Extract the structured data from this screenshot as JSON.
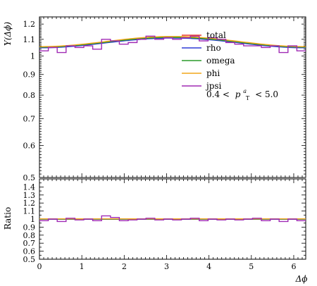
{
  "chart_data": [
    {
      "type": "line",
      "panel": "main",
      "ylabel": "Y(Δϕ)",
      "xlim": [
        0,
        6.283
      ],
      "ylim": [
        0.5,
        1.25
      ],
      "yscale": "log",
      "yticks": [
        "0.5",
        "0.6",
        "0.7",
        "0.8",
        "0.9",
        "1",
        "1.1",
        "1.2"
      ],
      "ytick_values": [
        0.5,
        0.6,
        0.7,
        0.8,
        0.9,
        1.0,
        1.1,
        1.2
      ],
      "legend_placement": "top-right",
      "annotation": "0.4 < p_T^a < 5.0",
      "annotation_parts": {
        "lhs": "0.4 <",
        "p": "p",
        "sup": "a",
        "sub": "T",
        "rhs": "< 5.0"
      },
      "bins": 30,
      "series": [
        {
          "name": "total",
          "color": "#e8382d",
          "style": "smooth",
          "y_min": 1.05,
          "y_max": 1.115
        },
        {
          "name": "rho",
          "color": "#2e3bd6",
          "style": "smooth",
          "y_min": 1.048,
          "y_max": 1.108
        },
        {
          "name": "omega",
          "color": "#2a9a2a",
          "style": "smooth",
          "y_min": 1.052,
          "y_max": 1.112
        },
        {
          "name": "phi",
          "color": "#f2a51a",
          "style": "smooth",
          "y_min": 1.055,
          "y_max": 1.118
        },
        {
          "name": "jpsi",
          "color": "#a02ab4",
          "style": "step",
          "values": [
            1.03,
            1.05,
            1.02,
            1.06,
            1.05,
            1.06,
            1.04,
            1.1,
            1.09,
            1.07,
            1.08,
            1.1,
            1.12,
            1.1,
            1.11,
            1.1,
            1.11,
            1.12,
            1.09,
            1.11,
            1.1,
            1.08,
            1.07,
            1.06,
            1.06,
            1.05,
            1.06,
            1.02,
            1.06,
            1.03
          ]
        }
      ]
    },
    {
      "type": "line",
      "panel": "ratio",
      "xlabel": "Δϕ",
      "ylabel": "Ratio",
      "xlim": [
        0,
        6.283
      ],
      "ylim": [
        0.5,
        1.5
      ],
      "xticks": [
        "0",
        "1",
        "2",
        "3",
        "4",
        "5",
        "6"
      ],
      "xtick_values": [
        0,
        1,
        2,
        3,
        4,
        5,
        6
      ],
      "yticks": [
        "0.5",
        "0.6",
        "0.7",
        "0.8",
        "0.9",
        "1",
        "1.1",
        "1.2",
        "1.3",
        "1.4"
      ],
      "ytick_values": [
        0.5,
        0.6,
        0.7,
        0.8,
        0.9,
        1.0,
        1.1,
        1.2,
        1.3,
        1.4
      ],
      "series": [
        {
          "name": "total",
          "color": "#e8382d",
          "value": 1.0
        },
        {
          "name": "rho",
          "color": "#2e3bd6",
          "value": 0.997
        },
        {
          "name": "omega",
          "color": "#2a9a2a",
          "value": 1.0
        },
        {
          "name": "phi",
          "color": "#f2a51a",
          "value": 1.003
        },
        {
          "name": "jpsi",
          "color": "#a02ab4",
          "style": "step",
          "values": [
            0.98,
            1.0,
            0.97,
            1.01,
            0.99,
            1.0,
            0.98,
            1.04,
            1.02,
            0.98,
            0.99,
            1.0,
            1.01,
            0.99,
            1.0,
            0.99,
            1.0,
            1.01,
            0.98,
            1.0,
            0.99,
            1.0,
            0.99,
            1.0,
            1.01,
            0.98,
            1.0,
            0.97,
            1.0,
            0.98
          ]
        }
      ]
    }
  ]
}
